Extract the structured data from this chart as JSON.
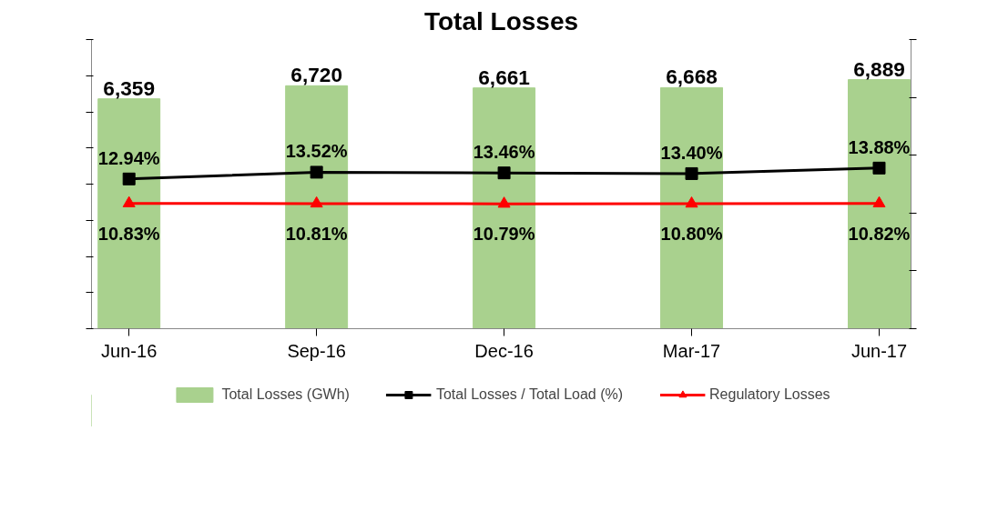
{
  "chart_data": {
    "type": "bar",
    "title": "Total Losses",
    "categories": [
      "Jun-16",
      "Sep-16",
      "Dec-16",
      "Mar-17",
      "Jun-17"
    ],
    "series": [
      {
        "name": "Total Losses (GWh)",
        "color": "#a9d18e",
        "values": [
          6359,
          6720,
          6661,
          6668,
          6889
        ],
        "value_labels": [
          "6,359",
          "6,720",
          "6,661",
          "6,668",
          "6,889"
        ]
      },
      {
        "name": "Total Losses / Total Load (%)",
        "type": "line",
        "axis": "y2",
        "color": "#000000",
        "marker": "square",
        "values": [
          12.94,
          13.52,
          13.46,
          13.4,
          13.88
        ],
        "value_labels": [
          "12.94%",
          "13.52%",
          "13.46%",
          "13.40%",
          "13.88%"
        ]
      },
      {
        "name": "Regulatory Losses",
        "type": "line",
        "axis": "y2",
        "color": "#ff0000",
        "marker": "triangle",
        "values": [
          10.83,
          10.81,
          10.79,
          10.8,
          10.82
        ],
        "value_labels": [
          "10.83%",
          "10.81%",
          "10.79%",
          "10.80%",
          "10.82%"
        ]
      }
    ],
    "legend": "bottom",
    "tick_labels": "x"
  }
}
